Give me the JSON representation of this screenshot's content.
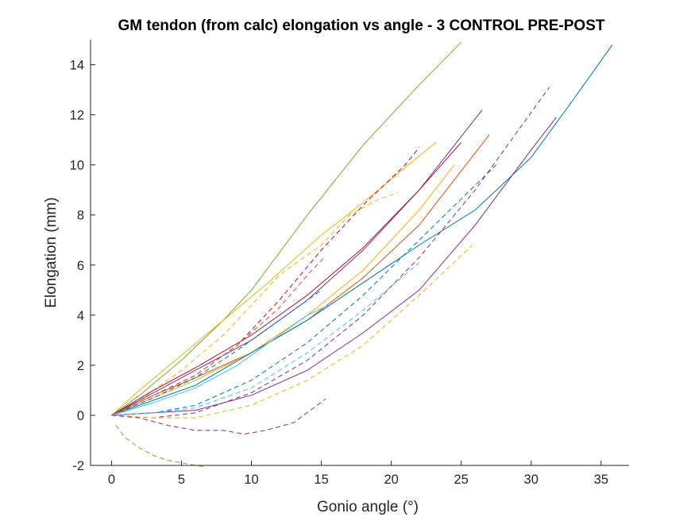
{
  "chart_data": {
    "type": "line",
    "title": "GM tendon (from calc) elongation vs angle - 3 CONTROL PRE-POST",
    "xlabel": "Gonio angle (°)",
    "ylabel": "Elongation (mm)",
    "xlim": [
      -1.5,
      37
    ],
    "ylim": [
      -2,
      15
    ],
    "xticks": [
      0,
      5,
      10,
      15,
      20,
      25,
      30,
      35
    ],
    "yticks": [
      -2,
      0,
      2,
      4,
      6,
      8,
      10,
      12,
      14
    ],
    "grid": false,
    "legend": "none",
    "colors": {
      "blue": "#0072BD",
      "orange": "#D95319",
      "yellow": "#EDB120",
      "purple": "#7E2F8E",
      "green": "#77AC30",
      "cyan": "#4DBEEE",
      "red": "#A2142F"
    },
    "series": [
      {
        "color": "#77AC30",
        "style": "solid",
        "x": [
          0,
          2,
          5,
          8,
          10,
          14,
          18,
          22,
          25
        ],
        "y": [
          0,
          0.8,
          2.2,
          3.8,
          5.0,
          8.0,
          10.8,
          13.2,
          14.9
        ]
      },
      {
        "color": "#EDB120",
        "style": "solid",
        "x": [
          0,
          2,
          5,
          8,
          11,
          15,
          18,
          21,
          23.2
        ],
        "y": [
          0,
          1.0,
          2.4,
          3.8,
          5.2,
          7.2,
          8.5,
          9.9,
          10.9
        ]
      },
      {
        "color": "#EDB120",
        "style": "dashed",
        "x": [
          0,
          2,
          5,
          8,
          12,
          15,
          17,
          19,
          20.5
        ],
        "y": [
          0,
          0.6,
          1.8,
          3.2,
          5.6,
          6.8,
          8.0,
          8.6,
          8.9
        ]
      },
      {
        "color": "#7E2F8E",
        "style": "solid",
        "x": [
          0,
          3,
          6,
          10,
          14,
          18,
          22,
          26.5
        ],
        "y": [
          0,
          0.9,
          1.8,
          3.0,
          4.6,
          6.6,
          9.0,
          12.2
        ]
      },
      {
        "color": "#A2142F",
        "style": "solid",
        "x": [
          0,
          3,
          6,
          10,
          14,
          18,
          22,
          25
        ],
        "y": [
          0,
          1.0,
          1.9,
          3.2,
          4.8,
          6.7,
          9.0,
          10.9
        ]
      },
      {
        "color": "#D95319",
        "style": "solid",
        "x": [
          0,
          3,
          6,
          10,
          14,
          18,
          22,
          27
        ],
        "y": [
          0,
          0.8,
          1.5,
          2.5,
          3.8,
          5.5,
          7.6,
          11.2
        ]
      },
      {
        "color": "#EDB120",
        "style": "solid",
        "x": [
          0,
          3,
          6,
          10,
          14,
          18,
          22,
          24.5
        ],
        "y": [
          0,
          0.7,
          1.4,
          2.5,
          4.0,
          5.8,
          8.2,
          10.0
        ]
      },
      {
        "color": "#0072BD",
        "style": "solid",
        "x": [
          0,
          3,
          6,
          10,
          14,
          18,
          22,
          26,
          30,
          33,
          35.8
        ],
        "y": [
          0,
          0.6,
          1.2,
          2.5,
          3.8,
          5.3,
          6.8,
          8.2,
          10.3,
          12.6,
          14.8
        ]
      },
      {
        "color": "#7E2F8E",
        "style": "solid",
        "x": [
          0,
          3,
          6,
          10,
          14,
          18,
          22,
          26,
          30,
          31.8
        ],
        "y": [
          0,
          0.1,
          0.2,
          0.8,
          1.8,
          3.3,
          5.0,
          7.6,
          10.6,
          11.9
        ]
      },
      {
        "color": "#7E2F8E",
        "style": "dashed",
        "x": [
          0,
          3,
          6,
          10,
          14,
          18,
          22,
          26,
          31.3
        ],
        "y": [
          0,
          -0.1,
          0.1,
          0.9,
          2.2,
          4.0,
          6.3,
          9.0,
          13.1
        ]
      },
      {
        "color": "#0072BD",
        "style": "dashed",
        "x": [
          0,
          3,
          6,
          10,
          14,
          18,
          22,
          27.5
        ],
        "y": [
          0,
          0.1,
          0.4,
          1.4,
          2.9,
          4.8,
          7.0,
          10.0
        ]
      },
      {
        "color": "#EDB120",
        "style": "dashed",
        "x": [
          0,
          3,
          6,
          10,
          14,
          18,
          22,
          25.8
        ],
        "y": [
          0,
          -0.1,
          -0.1,
          0.4,
          1.4,
          2.8,
          4.8,
          6.8
        ]
      },
      {
        "color": "#4DBEEE",
        "style": "dashed",
        "x": [
          0,
          3,
          6,
          10,
          14,
          18,
          22
        ],
        "y": [
          0,
          0.1,
          0.3,
          1.1,
          2.5,
          4.2,
          6.1
        ]
      },
      {
        "color": "#7E2F8E",
        "style": "dashed",
        "x": [
          0,
          2,
          4,
          6,
          8,
          9.5,
          11,
          13,
          15.3
        ],
        "y": [
          0,
          -0.1,
          -0.4,
          -0.6,
          -0.6,
          -0.75,
          -0.6,
          -0.3,
          0.65
        ]
      },
      {
        "color": "#77AC30",
        "style": "dashed",
        "x": [
          0.3,
          1,
          2,
          3,
          4,
          5,
          6,
          6.6
        ],
        "y": [
          -0.4,
          -0.9,
          -1.3,
          -1.6,
          -1.8,
          -1.9,
          -2.0,
          -2.05
        ]
      },
      {
        "color": "#A2142F",
        "style": "dashed",
        "x": [
          0,
          3,
          6,
          9,
          12,
          15,
          18,
          21,
          22
        ],
        "y": [
          0,
          0.8,
          1.6,
          2.8,
          4.6,
          6.6,
          8.4,
          10.0,
          10.7
        ]
      },
      {
        "color": "#0072BD",
        "style": "dashed",
        "x": [
          0,
          3,
          6,
          9,
          12,
          14,
          15
        ],
        "y": [
          0,
          0.7,
          1.5,
          2.6,
          3.8,
          4.6,
          5.0
        ]
      },
      {
        "color": "#4DBEEE",
        "style": "solid",
        "x": [
          0,
          3,
          6,
          9,
          12,
          14,
          15.5
        ],
        "y": [
          0,
          0.5,
          1.1,
          2.0,
          3.2,
          4.0,
          4.4
        ]
      },
      {
        "color": "#D95319",
        "style": "dashed",
        "x": [
          0,
          3,
          6,
          9,
          12,
          14,
          15.2
        ],
        "y": [
          0,
          0.8,
          1.6,
          2.8,
          4.3,
          5.6,
          6.3
        ]
      }
    ]
  }
}
